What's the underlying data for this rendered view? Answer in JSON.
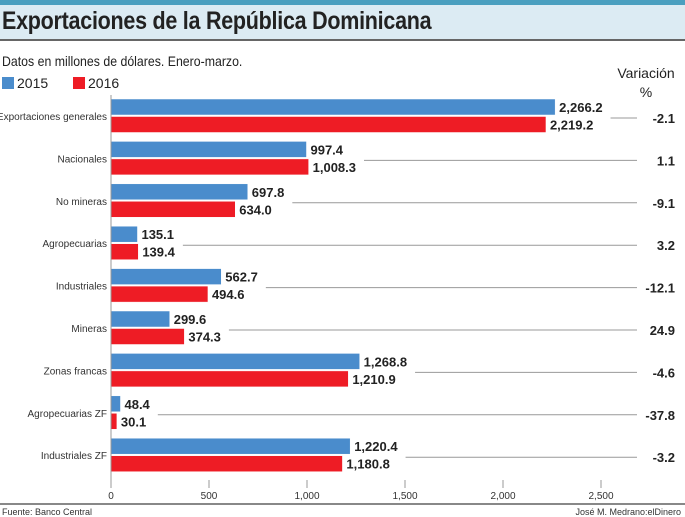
{
  "header": {
    "title": "Exportaciones de la República Dominicana",
    "subtitle": "Datos en millones de dólares. Enero-marzo."
  },
  "variation_header": {
    "line1": "Variación",
    "line2": "%"
  },
  "footer": {
    "source": "Fuente: Banco Central",
    "credit": "José M. Medrano:elDinero"
  },
  "chart_data": {
    "type": "bar",
    "orientation": "horizontal",
    "title": "Exportaciones de la República Dominicana",
    "subtitle": "Datos en millones de dólares. Enero-marzo.",
    "categories": [
      "Exportaciones generales",
      "Nacionales",
      "No mineras",
      "Agropecuarias",
      "Industriales",
      "Mineras",
      "Zonas francas",
      "Agropecuarias ZF",
      "Industriales ZF"
    ],
    "series": [
      {
        "name": "2015",
        "color": "#4a8ccc",
        "values": [
          2266.2,
          997.4,
          697.8,
          135.1,
          562.7,
          299.6,
          1268.8,
          48.4,
          1220.4
        ],
        "labels": [
          "2,266.2",
          "997.4",
          "697.8",
          "135.1",
          "562.7",
          "299.6",
          "1,268.8",
          "48.4",
          "1,220.4"
        ]
      },
      {
        "name": "2016",
        "color": "#ee1c25",
        "values": [
          2219.2,
          1008.3,
          634.0,
          139.4,
          494.6,
          374.3,
          1210.9,
          30.1,
          1180.8
        ],
        "labels": [
          "2,219.2",
          "1,008.3",
          "634.0",
          "139.4",
          "494.6",
          "374.3",
          "1,210.9",
          "30.1",
          "1,180.8"
        ]
      }
    ],
    "variation": [
      "-2.1",
      "1.1",
      "-9.1",
      "3.2",
      "-12.1",
      "24.9",
      "-4.6",
      "-37.8",
      "-3.2"
    ],
    "xlim": [
      0,
      2500
    ],
    "xticks": [
      0,
      500,
      1000,
      1500,
      2000,
      2500
    ],
    "xtick_labels": [
      "0",
      "500",
      "1,000",
      "1,500",
      "2,000",
      "2,500"
    ],
    "legend": "top-left",
    "grid": false
  }
}
